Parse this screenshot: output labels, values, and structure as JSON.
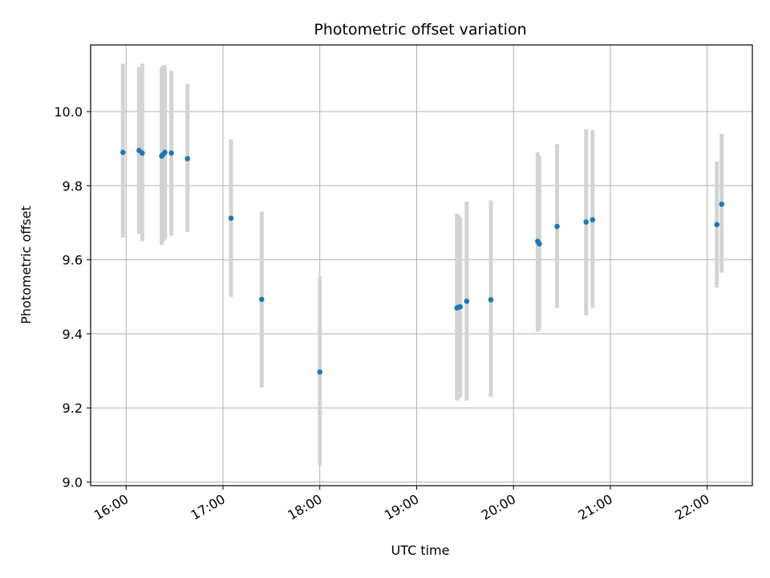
{
  "chart_data": {
    "type": "scatter",
    "title": "Photometric offset variation",
    "xlabel": "UTC time",
    "ylabel": "Photometric offset",
    "x_tick_labels": [
      "16:00",
      "17:00",
      "18:00",
      "19:00",
      "20:00",
      "21:00",
      "22:00"
    ],
    "y_tick_labels": [
      "9.0",
      "9.2",
      "9.4",
      "9.6",
      "9.8",
      "10.0"
    ],
    "x_ticks": [
      "16:00",
      "17:00",
      "18:00",
      "19:00",
      "20:00",
      "21:00",
      "22:00"
    ],
    "y_ticks": [
      9.0,
      9.2,
      9.4,
      9.6,
      9.8,
      10.0
    ],
    "xlim": [
      "15:38",
      "22:28"
    ],
    "ylim": [
      8.99,
      10.18
    ],
    "grid": true,
    "colors": {
      "marker": "#1f77b4",
      "errorbar": "#d3d3d3",
      "grid": "#b0b0b0"
    },
    "points": [
      {
        "x": "15:58",
        "y": 9.89,
        "ylow": 9.66,
        "yhigh": 10.13
      },
      {
        "x": "16:08",
        "y": 9.895,
        "ylow": 9.67,
        "yhigh": 10.12
      },
      {
        "x": "16:10",
        "y": 9.888,
        "ylow": 9.65,
        "yhigh": 10.13
      },
      {
        "x": "16:22",
        "y": 9.88,
        "ylow": 9.64,
        "yhigh": 10.12
      },
      {
        "x": "16:23",
        "y": 9.885,
        "ylow": 9.65,
        "yhigh": 10.125
      },
      {
        "x": "16:24",
        "y": 9.89,
        "ylow": 9.655,
        "yhigh": 10.125
      },
      {
        "x": "16:28",
        "y": 9.888,
        "ylow": 9.665,
        "yhigh": 10.11
      },
      {
        "x": "16:38",
        "y": 9.873,
        "ylow": 9.675,
        "yhigh": 10.075
      },
      {
        "x": "17:05",
        "y": 9.712,
        "ylow": 9.5,
        "yhigh": 9.925
      },
      {
        "x": "17:24",
        "y": 9.493,
        "ylow": 9.255,
        "yhigh": 9.73
      },
      {
        "x": "18:00",
        "y": 9.297,
        "ylow": 9.045,
        "yhigh": 9.555
      },
      {
        "x": "19:25",
        "y": 9.47,
        "ylow": 9.22,
        "yhigh": 9.725
      },
      {
        "x": "19:26",
        "y": 9.472,
        "ylow": 9.225,
        "yhigh": 9.72
      },
      {
        "x": "19:27",
        "y": 9.473,
        "ylow": 9.23,
        "yhigh": 9.715
      },
      {
        "x": "19:31",
        "y": 9.488,
        "ylow": 9.22,
        "yhigh": 9.757
      },
      {
        "x": "19:46",
        "y": 9.492,
        "ylow": 9.23,
        "yhigh": 9.76
      },
      {
        "x": "20:15",
        "y": 9.65,
        "ylow": 9.405,
        "yhigh": 9.89
      },
      {
        "x": "20:16",
        "y": 9.643,
        "ylow": 9.41,
        "yhigh": 9.88
      },
      {
        "x": "20:27",
        "y": 9.69,
        "ylow": 9.47,
        "yhigh": 9.912
      },
      {
        "x": "20:45",
        "y": 9.702,
        "ylow": 9.45,
        "yhigh": 9.952
      },
      {
        "x": "20:49",
        "y": 9.708,
        "ylow": 9.47,
        "yhigh": 9.95
      },
      {
        "x": "22:06",
        "y": 9.695,
        "ylow": 9.525,
        "yhigh": 9.865
      },
      {
        "x": "22:09",
        "y": 9.75,
        "ylow": 9.565,
        "yhigh": 9.94
      }
    ]
  }
}
